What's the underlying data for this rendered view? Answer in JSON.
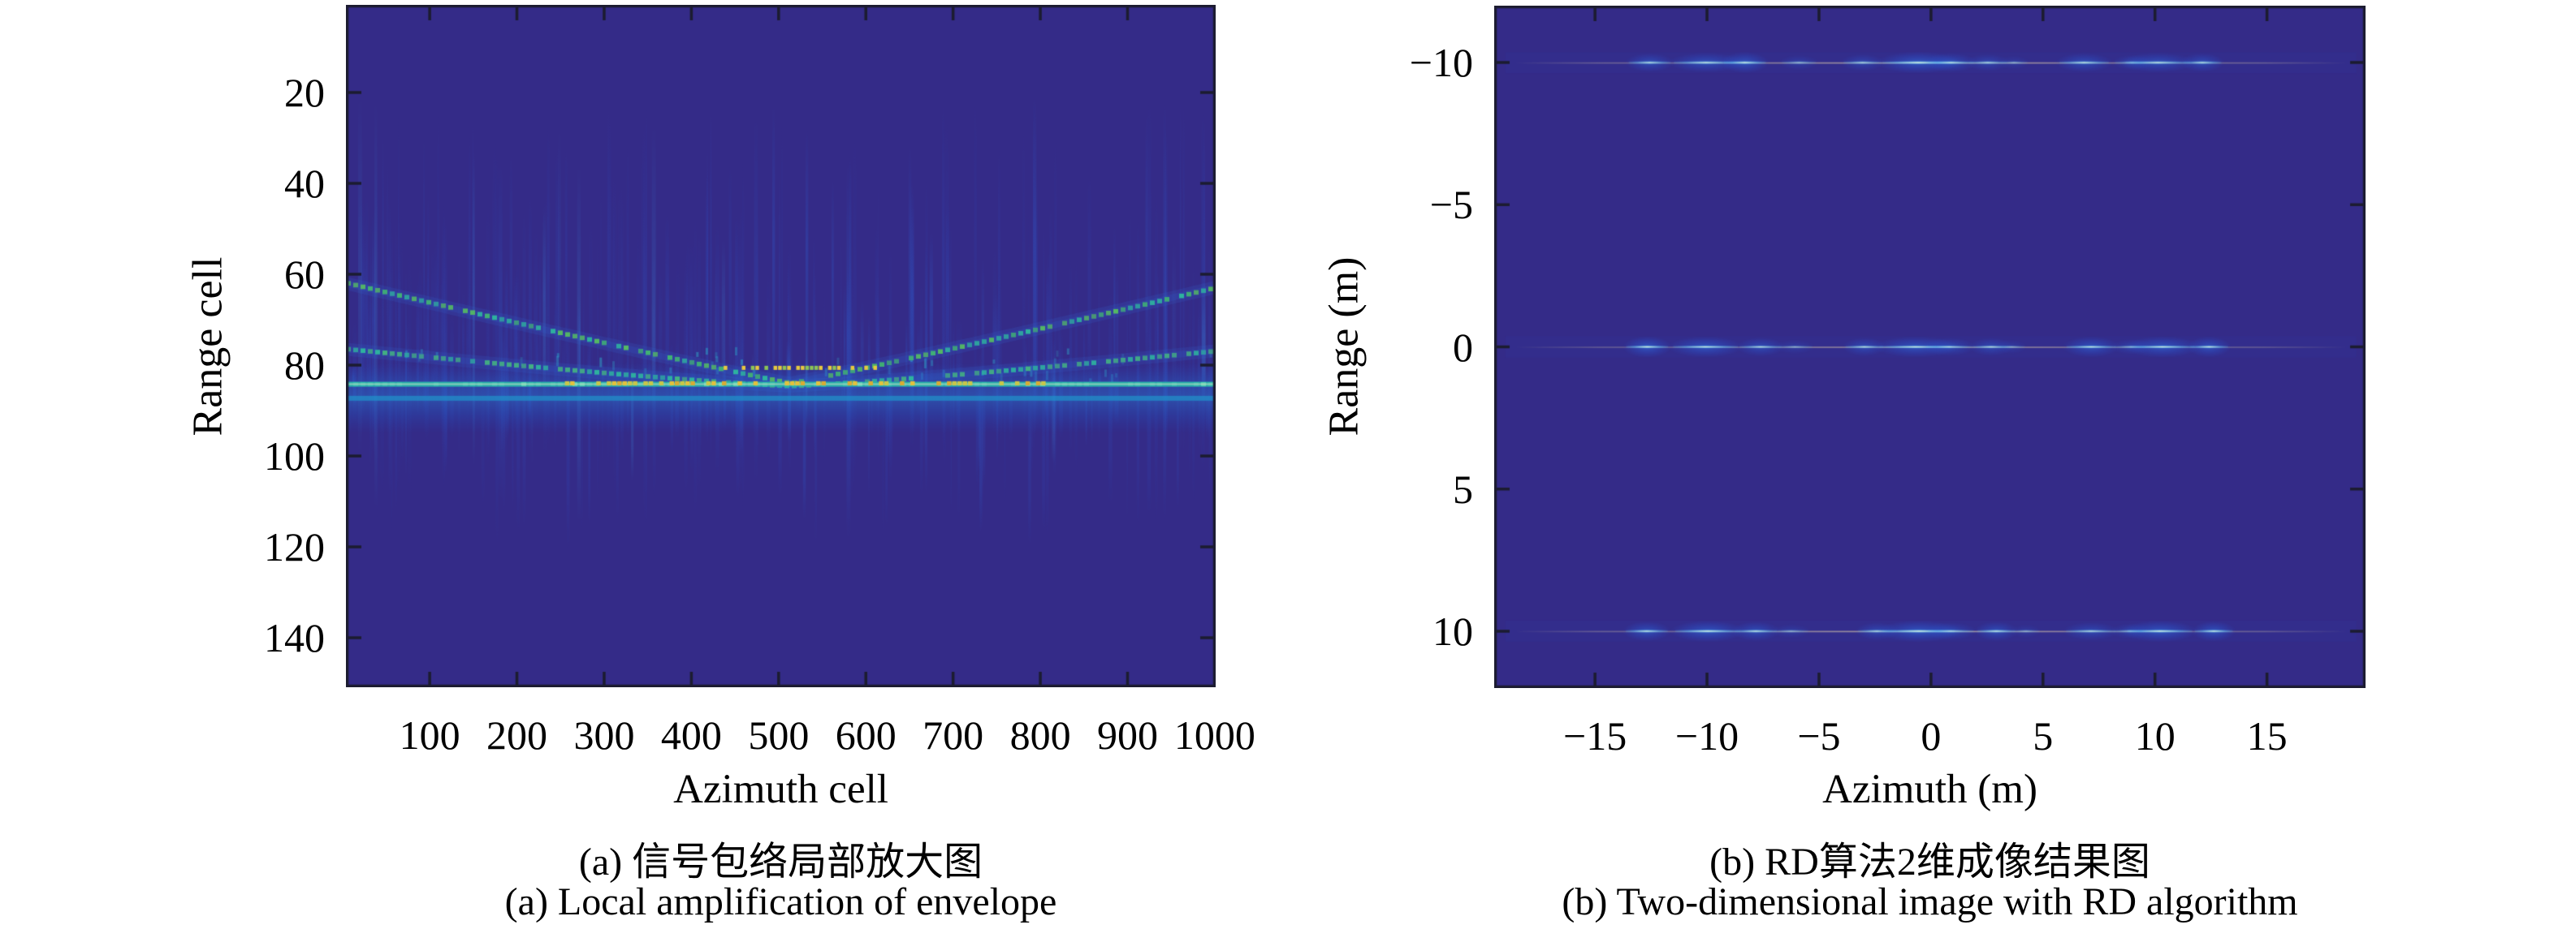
{
  "figure": {
    "background": "#ffffff",
    "panels": [
      {
        "id": "a",
        "ylabel": "Range cell",
        "xlabel": "Azimuth cell",
        "caption_zh": "(a) 信号包络局部放大图",
        "caption_en": "(a) Local amplification of envelope",
        "yticks": [
          20,
          40,
          60,
          80,
          100,
          120,
          140
        ],
        "xticks": [
          100,
          200,
          300,
          400,
          500,
          600,
          700,
          800,
          900,
          1000
        ],
        "xlim": [
          4,
          1001
        ],
        "ylim": [
          0.7,
          150.9
        ]
      },
      {
        "id": "b",
        "ylabel": "Range (m)",
        "xlabel": "Azimuth (m)",
        "caption_zh": "(b) RD算法2维成像结果图",
        "caption_en": "(b) Two-dimensional image with RD algorithm",
        "yticks": [
          -10,
          -5,
          0,
          5,
          10
        ],
        "xticks": [
          -15,
          -10,
          -5,
          0,
          5,
          10,
          15
        ],
        "xlim": [
          -19.5,
          19.4
        ],
        "ylim": [
          -12,
          12
        ]
      }
    ]
  },
  "chart_data": [
    {
      "type": "heatmap",
      "title": "",
      "xlabel": "Azimuth cell",
      "ylabel": "Range cell",
      "xlim": [
        4,
        1001
      ],
      "ylim": [
        0.7,
        150.9
      ],
      "y_direction": "down",
      "colormap": "parula",
      "background_color": "#342b88",
      "frame_color": "#1c1c30",
      "traces": [
        {
          "name": "range-curve-steep",
          "type": "v-curve",
          "edge_cell": 62,
          "vertex_cell": 84,
          "vertex_az": 512,
          "half_span": 508,
          "exponent": 1.05,
          "style": "dashed",
          "colors": [
            "#41b273",
            "#2eb49e",
            "#55ba62"
          ]
        },
        {
          "name": "range-curve-shallow",
          "type": "v-curve",
          "edge_cell": 76.5,
          "vertex_cell": 84.6,
          "vertex_az": 512,
          "half_span": 508,
          "exponent": 1.2,
          "style": "dashed",
          "colors": [
            "#44b281",
            "#2eb49e"
          ]
        },
        {
          "name": "flat-response-line",
          "type": "horizontal",
          "cell": 84.2,
          "style": "solid",
          "color": "#2ab3a9"
        },
        {
          "name": "secondary-band",
          "type": "horizontal",
          "cell": 87.3,
          "style": "soft",
          "color": "#1e96cd"
        },
        {
          "name": "center-dotted-segment",
          "type": "dotted-horizontal",
          "cell": 80.6,
          "az_range": [
            437,
            612
          ],
          "color": "#e7c93f"
        }
      ],
      "yellow_dashes": {
        "cell": 84.0,
        "az_range": [
          255,
          805
        ],
        "colors": [
          "#e3c13c",
          "#d9ab33",
          "#c9c648"
        ]
      },
      "noise": {
        "type": "vertical-streaks",
        "count": 330,
        "cell_band": [
          40,
          130
        ],
        "color": "#2f49b8"
      }
    },
    {
      "type": "heatmap",
      "title": "",
      "xlabel": "Azimuth (m)",
      "ylabel": "Range (m)",
      "xlim": [
        -19.5,
        19.4
      ],
      "ylim": [
        -12,
        12
      ],
      "y_direction": "down",
      "colormap": "parula",
      "background_color": "#342b88",
      "frame_color": "#1c1c30",
      "targets_range_m": [
        -10,
        0,
        10
      ],
      "line_extent_m": [
        -18.6,
        18.6
      ],
      "blob_pattern": [
        {
          "az": -12.5,
          "hw": 1.1,
          "a": 0.85
        },
        {
          "az": -10.2,
          "hw": 1.7,
          "a": 0.8
        },
        {
          "az": -8.0,
          "hw": 1.1,
          "a": 0.8
        },
        {
          "az": -6.2,
          "hw": 0.9,
          "a": 0.4
        },
        {
          "az": -2.7,
          "hw": 1.0,
          "a": 0.65
        },
        {
          "az": -0.9,
          "hw": 1.9,
          "a": 0.9
        },
        {
          "az": 0.9,
          "hw": 1.2,
          "a": 0.7
        },
        {
          "az": 2.6,
          "hw": 1.0,
          "a": 0.7
        },
        {
          "az": 4.0,
          "hw": 0.7,
          "a": 0.4
        },
        {
          "az": 6.9,
          "hw": 1.3,
          "a": 0.75
        },
        {
          "az": 8.6,
          "hw": 0.9,
          "a": 0.55
        },
        {
          "az": 10.3,
          "hw": 1.7,
          "a": 0.85
        },
        {
          "az": 12.4,
          "hw": 1.0,
          "a": 0.8
        }
      ],
      "core_color": "#82e1ff",
      "glow_color": "#2f82f6",
      "hairline_color": "#d8c8a8"
    }
  ]
}
